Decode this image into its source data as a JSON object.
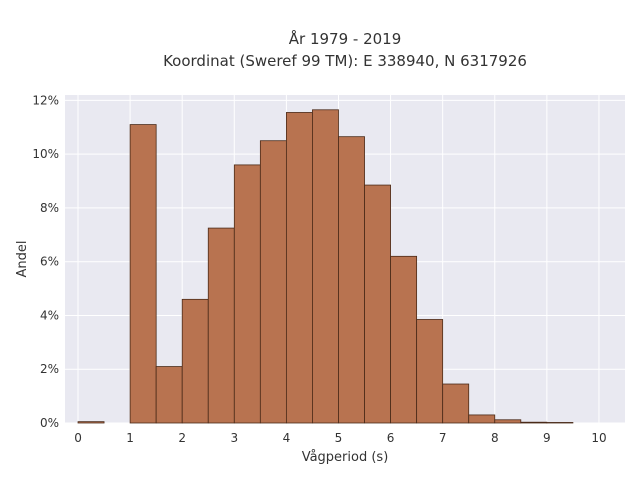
{
  "chart_data": {
    "type": "bar",
    "title_lines": [
      "År 1979 - 2019",
      "Koordinat (Sweref 99 TM): E 338940, N 6317926"
    ],
    "xlabel": "Vågperiod (s)",
    "ylabel": "Andel",
    "xlim": [
      -0.25,
      10.5
    ],
    "ylim": [
      0,
      12.2
    ],
    "bin_width": 0.5,
    "x_ticks": [
      0,
      1,
      2,
      3,
      4,
      5,
      6,
      7,
      8,
      9,
      10
    ],
    "y_ticks": [
      0,
      2,
      4,
      6,
      8,
      10,
      12
    ],
    "y_tick_labels": [
      "0%",
      "2%",
      "4%",
      "6%",
      "8%",
      "10%",
      "12%"
    ],
    "grid": true,
    "bar_color": "#b87350",
    "bar_edge_color": "#4a2a18",
    "background_color": "#e9e9f1",
    "bins": [
      {
        "start": 0.0,
        "value": 0.05
      },
      {
        "start": 1.0,
        "value": 11.1
      },
      {
        "start": 1.5,
        "value": 2.1
      },
      {
        "start": 2.0,
        "value": 4.6
      },
      {
        "start": 2.5,
        "value": 7.25
      },
      {
        "start": 3.0,
        "value": 9.6
      },
      {
        "start": 3.5,
        "value": 10.5
      },
      {
        "start": 4.0,
        "value": 11.55
      },
      {
        "start": 4.5,
        "value": 11.65
      },
      {
        "start": 5.0,
        "value": 10.65
      },
      {
        "start": 5.5,
        "value": 8.85
      },
      {
        "start": 6.0,
        "value": 6.2
      },
      {
        "start": 6.5,
        "value": 3.85
      },
      {
        "start": 7.0,
        "value": 1.45
      },
      {
        "start": 7.5,
        "value": 0.3
      },
      {
        "start": 8.0,
        "value": 0.12
      },
      {
        "start": 8.5,
        "value": 0.03
      },
      {
        "start": 9.0,
        "value": 0.02
      }
    ]
  }
}
